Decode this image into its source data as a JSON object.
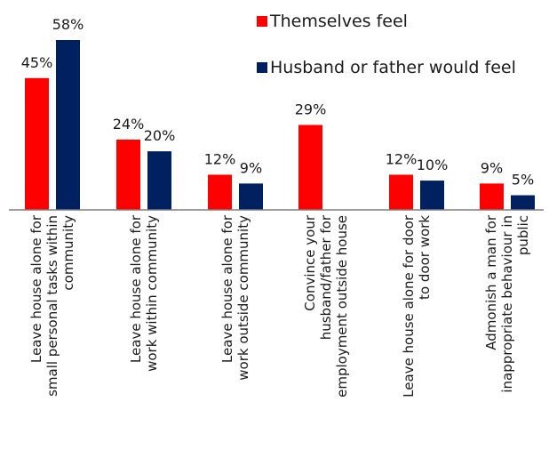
{
  "chart_data": {
    "type": "bar",
    "categories": [
      [
        "Leave house alone for",
        "small personal tasks within",
        "community"
      ],
      [
        "Leave house alone for",
        "work within community"
      ],
      [
        "Leave house alone for",
        "work outside community"
      ],
      [
        "Convince your",
        "husband/father for",
        "employment outside house"
      ],
      [
        "Leave house alone for door",
        "to door work"
      ],
      [
        "Admonish a man for",
        "inappropriate behaviour in",
        "public"
      ]
    ],
    "series": [
      {
        "name": "Themselves feel",
        "color": "#ff0000",
        "values": [
          45,
          24,
          12,
          29,
          12,
          9
        ],
        "labels": [
          "45%",
          "24%",
          "12%",
          "29%",
          "12%",
          "9%"
        ]
      },
      {
        "name": "Husband or father would feel",
        "color": "#002060",
        "values": [
          58,
          20,
          9,
          null,
          10,
          5
        ],
        "labels": [
          "58%",
          "20%",
          "9%",
          "",
          "10%",
          "5%"
        ]
      }
    ],
    "ylim": [
      0,
      60
    ],
    "grid": false,
    "legend_position": "top-right"
  }
}
